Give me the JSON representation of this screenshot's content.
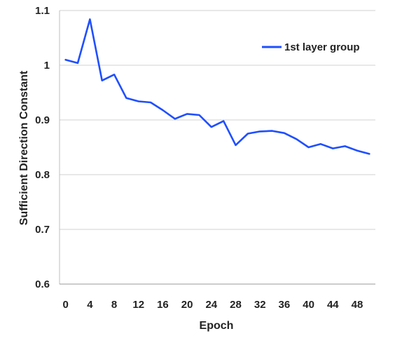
{
  "chart_data": {
    "type": "line",
    "title": "",
    "xlabel": "Epoch",
    "ylabel": "Sufficient Direction Constant",
    "xlim": [
      -1,
      51
    ],
    "ylim": [
      0.6,
      1.1
    ],
    "xticks": [
      0,
      4,
      8,
      12,
      16,
      20,
      24,
      28,
      32,
      36,
      40,
      44,
      48
    ],
    "yticks": [
      0.6,
      0.7,
      0.8,
      0.9,
      1,
      1.1
    ],
    "ytick_labels": [
      "0.6",
      "0.7",
      "0.8",
      "0.9",
      "1",
      "1.1"
    ],
    "grid": "horizontal",
    "legend_position": "top-right",
    "series": [
      {
        "name": "1st layer group",
        "color": "#1f4fff",
        "x": [
          0,
          2,
          4,
          6,
          8,
          10,
          12,
          14,
          16,
          18,
          20,
          22,
          24,
          26,
          28,
          30,
          32,
          34,
          36,
          38,
          40,
          42,
          44,
          46,
          48,
          50
        ],
        "y": [
          1.01,
          1.004,
          1.084,
          0.972,
          0.983,
          0.94,
          0.934,
          0.932,
          0.918,
          0.902,
          0.911,
          0.909,
          0.887,
          0.898,
          0.854,
          0.875,
          0.879,
          0.88,
          0.876,
          0.865,
          0.85,
          0.856,
          0.848,
          0.852,
          0.844,
          0.838
        ]
      }
    ]
  }
}
